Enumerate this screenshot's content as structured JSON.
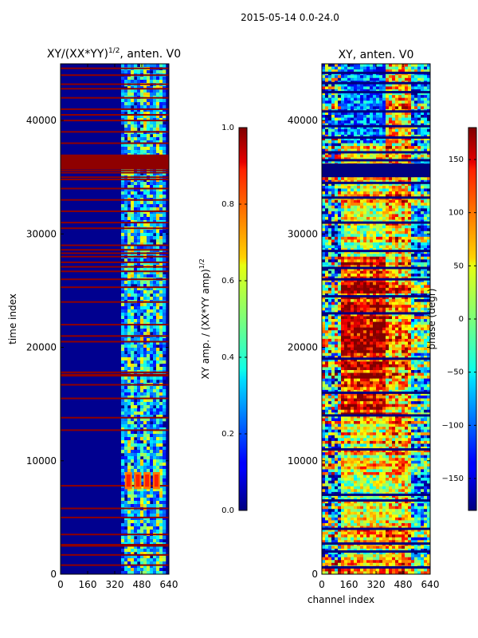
{
  "figure": {
    "suptitle": "2015-05-14 0.0-24.0",
    "shared_xlabel": "channel index"
  },
  "chart_data": [
    {
      "type": "heatmap",
      "title_main": "XY/(XX*YY)",
      "title_exp": "1/2",
      "title_tail": ", anten. V0",
      "ylabel": "time index",
      "xlim": [
        0,
        640
      ],
      "ylim": [
        0,
        45000
      ],
      "xticks": [
        0,
        160,
        320,
        480,
        640
      ],
      "yticks": [
        0,
        10000,
        20000,
        30000,
        40000
      ],
      "colorbar": {
        "label_main": "XY amp. / (XX*YY amp)",
        "label_exp": "1/2",
        "range": [
          0.0,
          1.0
        ],
        "ticks": [
          "0.0",
          "0.2",
          "0.4",
          "0.6",
          "0.8",
          "1.0"
        ]
      },
      "saturated_rows": [
        800,
        1700,
        2500,
        2600,
        3500,
        5000,
        5800,
        7800,
        12700,
        13800,
        15500,
        16700,
        17500,
        17600,
        17800,
        20500,
        21000,
        22000,
        24000,
        25300,
        26000,
        26700,
        27100,
        27500,
        28000,
        28300,
        28600,
        29000,
        30500,
        31000,
        32000,
        33000,
        34000,
        34800,
        35000,
        35400,
        35600,
        36000,
        36200,
        36400,
        36600,
        36800,
        38000,
        39000,
        40000,
        40500,
        41000,
        42000,
        42800,
        43200,
        44000,
        44600
      ],
      "bright_block": {
        "channels": [
          380,
          600
        ],
        "rows": [
          7500,
          9000
        ]
      }
    },
    {
      "type": "heatmap",
      "title": "XY, anten. V0",
      "xlabel": "channel index",
      "xlim": [
        0,
        640
      ],
      "ylim": [
        0,
        45000
      ],
      "xticks": [
        0,
        160,
        320,
        480,
        640
      ],
      "yticks": [
        0,
        10000,
        20000,
        30000,
        40000
      ],
      "colorbar": {
        "label": "phase (degr)",
        "range": [
          -180,
          180
        ],
        "ticks": [
          "-150",
          "-100",
          "-50",
          "0",
          "50",
          "100",
          "150"
        ]
      },
      "dark_rows": [
        600,
        2000,
        2700,
        4000,
        6500,
        7000,
        11000,
        14000,
        16000,
        19000,
        23000,
        24500,
        26000,
        27000,
        28500,
        31000,
        33200,
        34500,
        35500,
        36000,
        36500,
        37200,
        38500,
        39500,
        40800,
        42500,
        43300,
        44200
      ]
    }
  ]
}
